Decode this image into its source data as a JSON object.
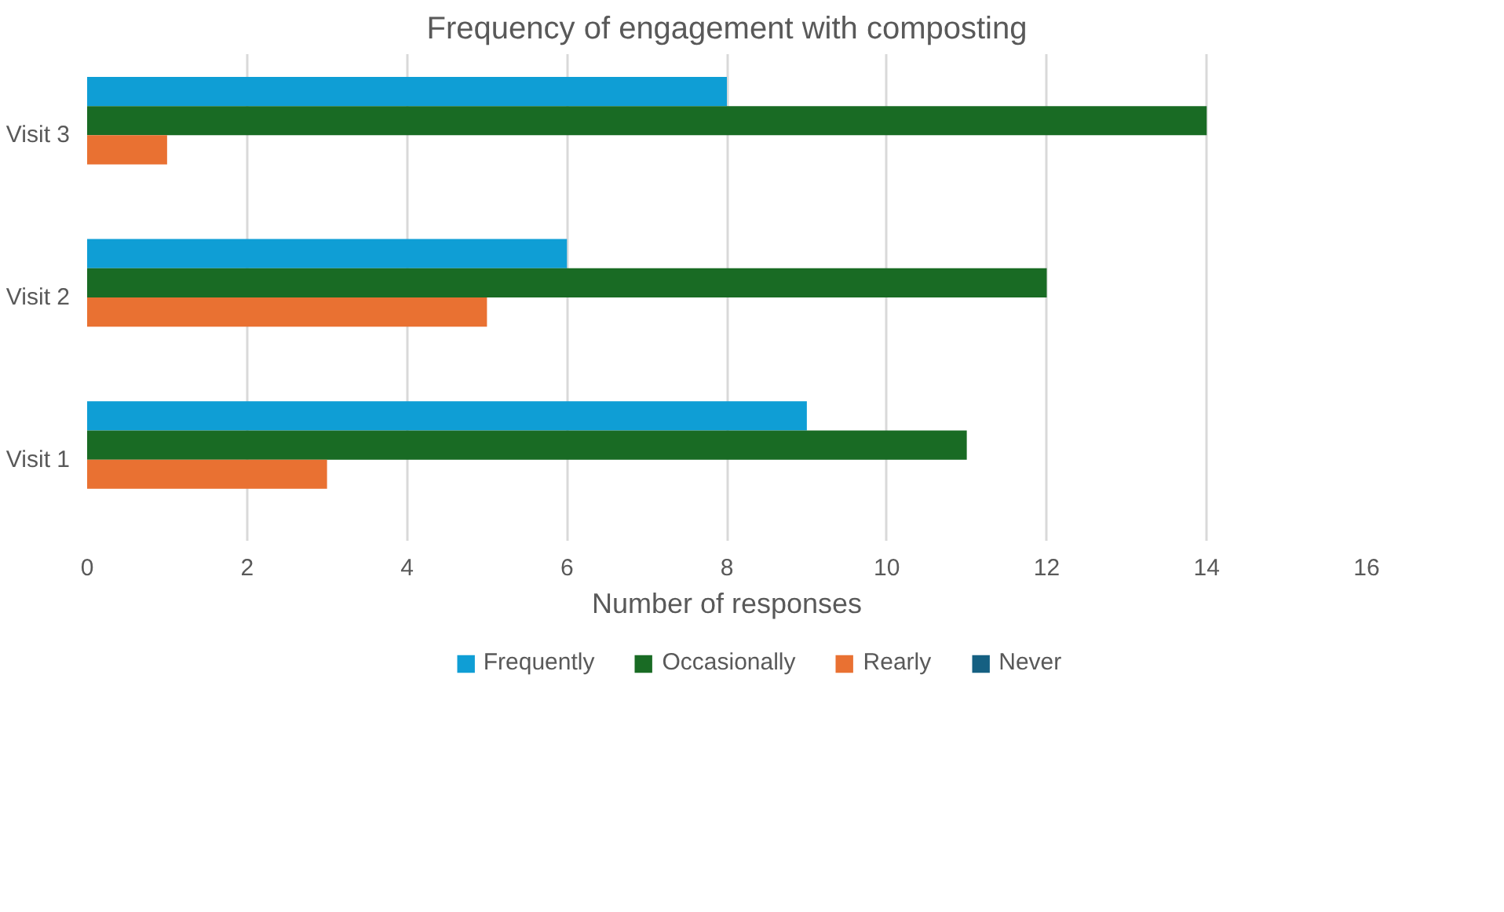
{
  "chart_data": {
    "type": "bar",
    "orientation": "horizontal",
    "title": "Frequency of engagement with composting",
    "xlabel": "Number of responses",
    "categories": [
      "Visit 3",
      "Visit 2",
      "Visit 1"
    ],
    "series": [
      {
        "name": "Frequently",
        "color": "#0f9ed5",
        "values": [
          8,
          6,
          9
        ]
      },
      {
        "name": "Occasionally",
        "color": "#196b24",
        "values": [
          14,
          12,
          11
        ]
      },
      {
        "name": "Rearly",
        "color": "#e97132",
        "values": [
          1,
          5,
          3
        ]
      },
      {
        "name": "Never",
        "color": "#156082",
        "values": [
          0,
          0,
          0
        ]
      }
    ],
    "xlim": [
      0,
      16
    ],
    "xticks": [
      0,
      2,
      4,
      6,
      8,
      10,
      12,
      14,
      16
    ],
    "grid": "x",
    "legend": "bottom"
  }
}
